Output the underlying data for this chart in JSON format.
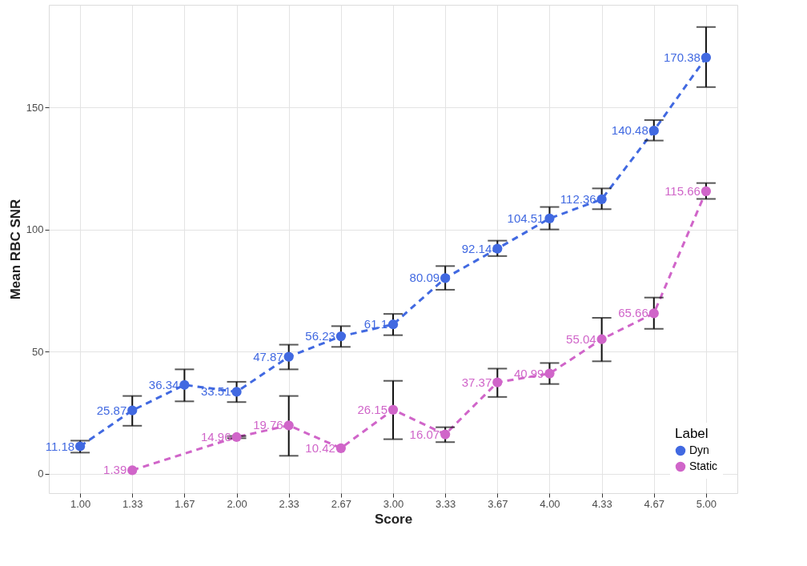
{
  "chart_data": {
    "type": "line",
    "xlabel": "Score",
    "ylabel": "Mean RBC SNR",
    "legend_title": "Label",
    "categories": [
      "1.00",
      "1.33",
      "1.67",
      "2.00",
      "2.33",
      "2.67",
      "3.00",
      "3.33",
      "3.67",
      "4.00",
      "4.33",
      "4.67",
      "5.00"
    ],
    "ylim": [
      -8,
      192
    ],
    "yticks": [
      0,
      50,
      100,
      150
    ],
    "grid": true,
    "legend": "bottom right",
    "marker": "circle",
    "line_style": "dashed",
    "data_labels": true,
    "series": [
      {
        "name": "Dyn",
        "color": "#4169e1",
        "values": [
          11.18,
          25.87,
          36.34,
          33.51,
          47.87,
          56.23,
          61.1,
          80.09,
          92.14,
          104.51,
          112.36,
          140.48,
          170.38
        ],
        "errors": [
          [
            8.6,
            13.5
          ],
          [
            19.6,
            31.8
          ],
          [
            29.6,
            42.7
          ],
          [
            29.3,
            37.6
          ],
          [
            42.7,
            52.8
          ],
          [
            51.9,
            60.4
          ],
          [
            56.7,
            65.4
          ],
          [
            75.3,
            85.0
          ],
          [
            89.1,
            95.4
          ],
          [
            100.0,
            109.2
          ],
          [
            108.3,
            116.8
          ],
          [
            136.4,
            144.8
          ],
          [
            158.3,
            182.9
          ]
        ]
      },
      {
        "name": "Static",
        "color": "#d065c9",
        "values": [
          null,
          1.39,
          null,
          14.96,
          19.76,
          10.42,
          26.15,
          16.07,
          37.37,
          40.99,
          55.04,
          65.66,
          115.66
        ],
        "errors": [
          null,
          null,
          null,
          [
            14.5,
            15.4
          ],
          [
            7.3,
            31.8
          ],
          null,
          [
            14.1,
            38.0
          ],
          [
            12.9,
            19.0
          ],
          [
            31.4,
            43.0
          ],
          [
            36.7,
            45.3
          ],
          [
            46.0,
            63.8
          ],
          [
            59.3,
            72.1
          ],
          [
            112.5,
            119.0
          ]
        ]
      }
    ]
  }
}
